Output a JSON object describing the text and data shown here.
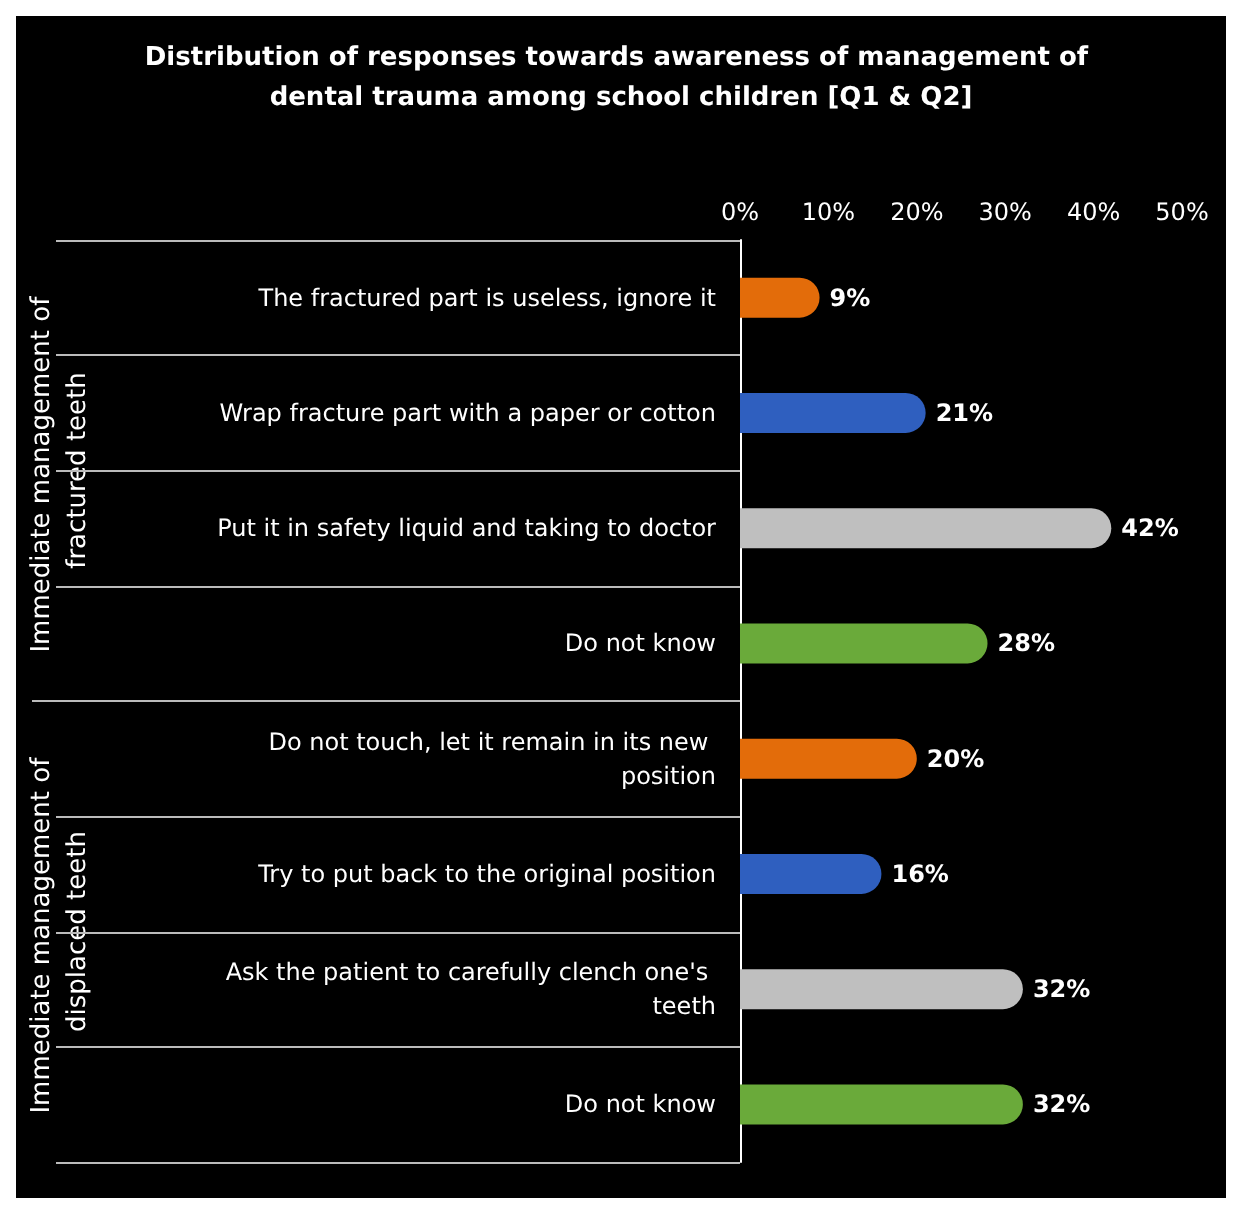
{
  "chart_data": {
    "type": "bar",
    "orientation": "horizontal",
    "title": "Distribution of responses towards awareness of management of dental trauma among school children [Q1 & Q2]",
    "categories": [
      "The fractured part is useless, ignore it",
      "Wrap fracture part with a paper or cotton",
      "Put it in safety liquid and taking to doctor",
      "Do not know",
      "Do not touch, let it remain in its new position",
      "Try to put back to the original position",
      "Ask the patient to carefully clench one's teeth",
      "Do not know"
    ],
    "values": [
      9,
      21,
      42,
      28,
      20,
      16,
      32,
      32
    ],
    "colors": [
      "#e36c0a",
      "#2f5fbf",
      "#bfbfbf",
      "#6aaa3a",
      "#e36c0a",
      "#2f5fbf",
      "#bfbfbf",
      "#6aaa3a"
    ],
    "value_labels": [
      "9%",
      "21%",
      "42%",
      "28%",
      "20%",
      "16%",
      "32%",
      "32%"
    ],
    "xlim": [
      0,
      50
    ],
    "xticks": [
      {
        "value": 0,
        "label": "0%"
      },
      {
        "value": 10,
        "label": "10%"
      },
      {
        "value": 20,
        "label": "20%"
      },
      {
        "value": 30,
        "label": "30%"
      },
      {
        "value": 40,
        "label": "40%"
      },
      {
        "value": 50,
        "label": "50%"
      }
    ],
    "annotations": [
      "Immediate management of fractured teeth",
      "Immediate management of displaced teeth"
    ],
    "grid": false
  }
}
